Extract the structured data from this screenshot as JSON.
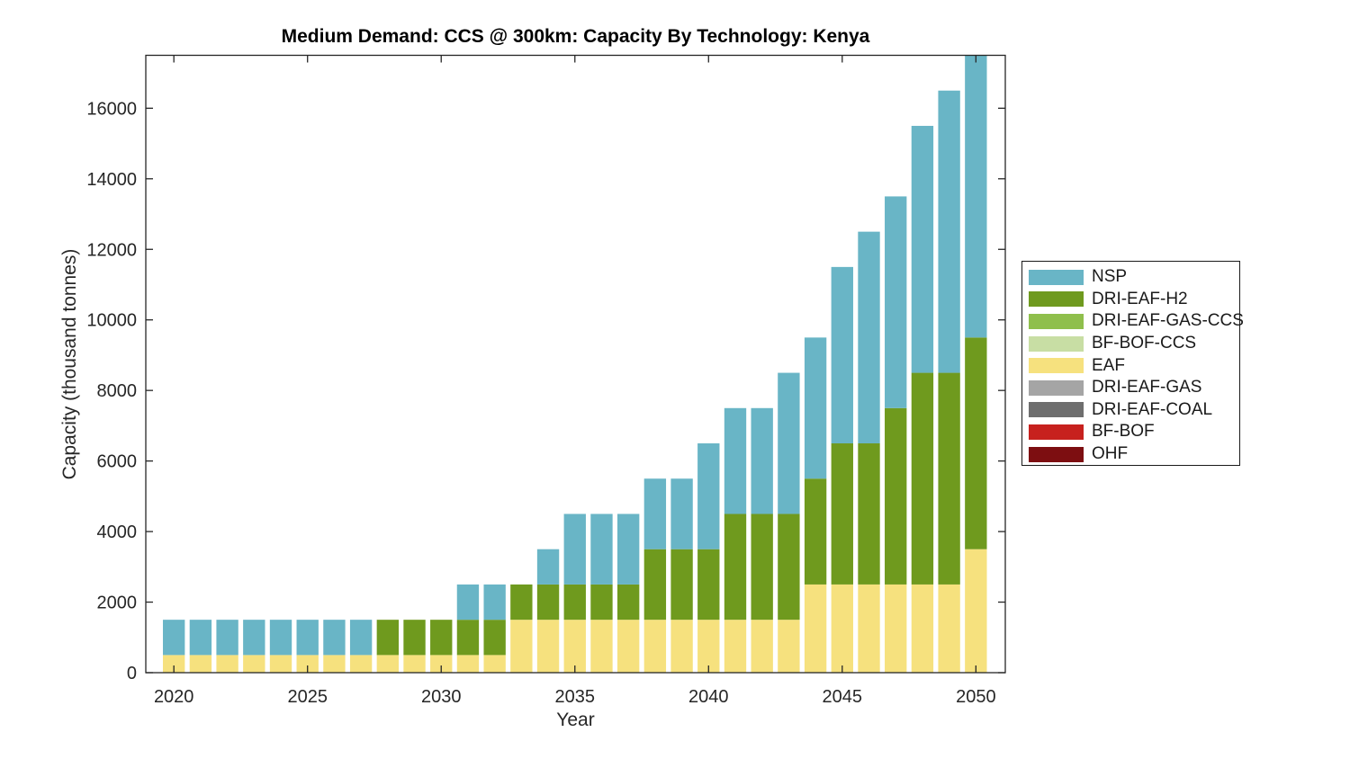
{
  "title": "Medium Demand: CCS @ 300km: Capacity By Technology: Kenya",
  "colors": {
    "background": "#ffffff",
    "axis": "#262626",
    "tick_text": "#262626",
    "title_text": "#000000"
  },
  "chart_data": {
    "type": "bar",
    "stacked": true,
    "title": "Medium Demand: CCS @ 300km: Capacity By Technology: Kenya",
    "xlabel": "Year",
    "ylabel": "Capacity (thousand tonnes)",
    "grid": false,
    "legend_position": "right-outside",
    "xlim": [
      2018.95,
      2051.1
    ],
    "ylim": [
      0,
      17500
    ],
    "xticks": [
      2020,
      2025,
      2030,
      2035,
      2040,
      2045,
      2050
    ],
    "yticks": [
      0,
      2000,
      4000,
      6000,
      8000,
      10000,
      12000,
      14000,
      16000
    ],
    "years": [
      2020,
      2021,
      2022,
      2023,
      2024,
      2025,
      2026,
      2027,
      2028,
      2029,
      2030,
      2031,
      2032,
      2033,
      2034,
      2035,
      2036,
      2037,
      2038,
      2039,
      2040,
      2041,
      2042,
      2043,
      2044,
      2045,
      2046,
      2047,
      2048,
      2049,
      2050
    ],
    "stack_order_bottom_to_top": [
      "EAF",
      "DRI-EAF-H2",
      "NSP"
    ],
    "bar_width_fraction": 0.82,
    "series": [
      {
        "name": "NSP",
        "color": "#69B5C6",
        "values": [
          1000,
          1000,
          1000,
          1000,
          1000,
          1000,
          1000,
          1000,
          0,
          0,
          0,
          1000,
          1000,
          0,
          1000,
          2000,
          2000,
          2000,
          2000,
          2000,
          3000,
          3000,
          3000,
          4000,
          4000,
          5000,
          6000,
          6000,
          7000,
          8000,
          8000
        ]
      },
      {
        "name": "DRI-EAF-H2",
        "color": "#6F9A1E",
        "values": [
          0,
          0,
          0,
          0,
          0,
          0,
          0,
          0,
          1000,
          1000,
          1000,
          1000,
          1000,
          1000,
          1000,
          1000,
          1000,
          1000,
          2000,
          2000,
          2000,
          3000,
          3000,
          3000,
          3000,
          4000,
          4000,
          5000,
          6000,
          6000,
          6000
        ]
      },
      {
        "name": "DRI-EAF-GAS-CCS",
        "color": "#8FBF4C",
        "values": [
          0,
          0,
          0,
          0,
          0,
          0,
          0,
          0,
          0,
          0,
          0,
          0,
          0,
          0,
          0,
          0,
          0,
          0,
          0,
          0,
          0,
          0,
          0,
          0,
          0,
          0,
          0,
          0,
          0,
          0,
          0
        ]
      },
      {
        "name": "BF-BOF-CCS",
        "color": "#C8DEA4",
        "values": [
          0,
          0,
          0,
          0,
          0,
          0,
          0,
          0,
          0,
          0,
          0,
          0,
          0,
          0,
          0,
          0,
          0,
          0,
          0,
          0,
          0,
          0,
          0,
          0,
          0,
          0,
          0,
          0,
          0,
          0,
          0
        ]
      },
      {
        "name": "EAF",
        "color": "#F6E17E",
        "values": [
          500,
          500,
          500,
          500,
          500,
          500,
          500,
          500,
          500,
          500,
          500,
          500,
          500,
          1500,
          1500,
          1500,
          1500,
          1500,
          1500,
          1500,
          1500,
          1500,
          1500,
          1500,
          2500,
          2500,
          2500,
          2500,
          2500,
          2500,
          3500
        ]
      },
      {
        "name": "DRI-EAF-GAS",
        "color": "#A5A5A5",
        "values": [
          0,
          0,
          0,
          0,
          0,
          0,
          0,
          0,
          0,
          0,
          0,
          0,
          0,
          0,
          0,
          0,
          0,
          0,
          0,
          0,
          0,
          0,
          0,
          0,
          0,
          0,
          0,
          0,
          0,
          0,
          0
        ]
      },
      {
        "name": "DRI-EAF-COAL",
        "color": "#6E6E6E",
        "values": [
          0,
          0,
          0,
          0,
          0,
          0,
          0,
          0,
          0,
          0,
          0,
          0,
          0,
          0,
          0,
          0,
          0,
          0,
          0,
          0,
          0,
          0,
          0,
          0,
          0,
          0,
          0,
          0,
          0,
          0,
          0
        ]
      },
      {
        "name": "BF-BOF",
        "color": "#C7211E",
        "values": [
          0,
          0,
          0,
          0,
          0,
          0,
          0,
          0,
          0,
          0,
          0,
          0,
          0,
          0,
          0,
          0,
          0,
          0,
          0,
          0,
          0,
          0,
          0,
          0,
          0,
          0,
          0,
          0,
          0,
          0,
          0
        ]
      },
      {
        "name": "OHF",
        "color": "#7D0E11",
        "values": [
          0,
          0,
          0,
          0,
          0,
          0,
          0,
          0,
          0,
          0,
          0,
          0,
          0,
          0,
          0,
          0,
          0,
          0,
          0,
          0,
          0,
          0,
          0,
          0,
          0,
          0,
          0,
          0,
          0,
          0,
          0
        ]
      }
    ]
  }
}
